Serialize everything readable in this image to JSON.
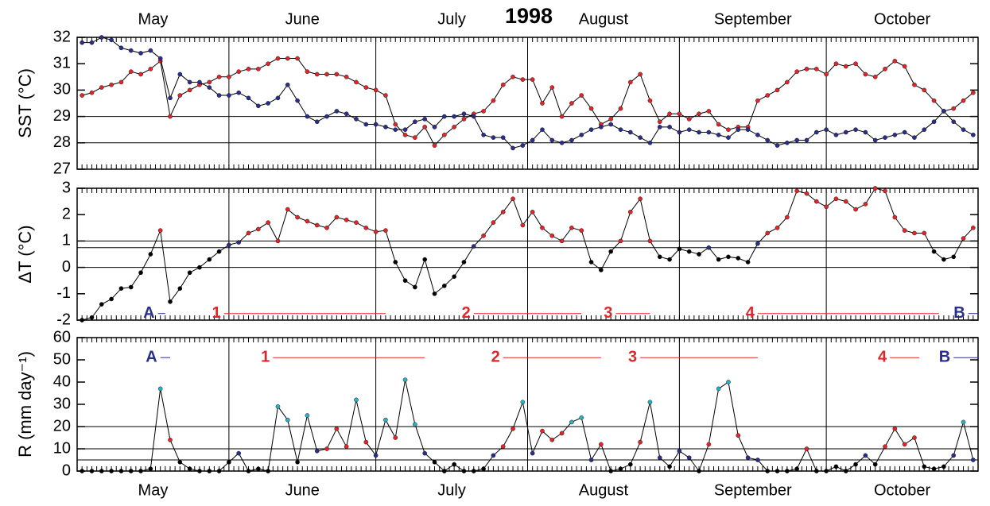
{
  "chart_data": [
    {
      "type": "line",
      "title": "1998",
      "months": [
        "May",
        "June",
        "July",
        "August",
        "September",
        "October"
      ],
      "month_starts": [
        0,
        31,
        61,
        92,
        123,
        153,
        184
      ],
      "xlim": [
        0,
        184
      ],
      "x": [
        1,
        3,
        5,
        7,
        9,
        11,
        13,
        15,
        17,
        19,
        21,
        23,
        25,
        27,
        29,
        31,
        33,
        35,
        37,
        39,
        41,
        43,
        45,
        47,
        49,
        51,
        53,
        55,
        57,
        59,
        61,
        63,
        65,
        67,
        69,
        71,
        73,
        75,
        77,
        79,
        81,
        83,
        85,
        87,
        89,
        91,
        93,
        95,
        97,
        99,
        101,
        103,
        105,
        107,
        109,
        111,
        113,
        115,
        117,
        119,
        121,
        123,
        125,
        127,
        129,
        131,
        133,
        135,
        137,
        139,
        141,
        143,
        145,
        147,
        149,
        151,
        153,
        155,
        157,
        159,
        161,
        163,
        165,
        167,
        169,
        171,
        173,
        175,
        177,
        179,
        181,
        183
      ],
      "ylabel": "SST (°C)",
      "ylim": [
        27,
        32
      ],
      "yticks": [
        27,
        28,
        29,
        30,
        31,
        32
      ],
      "hlines": [
        28,
        29
      ],
      "series": [
        {
          "color": "#e0262b",
          "values": [
            29.8,
            29.9,
            30.1,
            30.2,
            30.3,
            30.7,
            30.6,
            30.8,
            31.1,
            29.0,
            29.8,
            30.0,
            30.2,
            30.3,
            30.5,
            30.5,
            30.7,
            30.8,
            30.8,
            31.0,
            31.2,
            31.2,
            31.2,
            30.7,
            30.6,
            30.6,
            30.6,
            30.5,
            30.3,
            30.1,
            30.0,
            29.8,
            28.7,
            28.3,
            28.2,
            28.6,
            27.9,
            28.3,
            28.6,
            28.9,
            29.1,
            29.2,
            29.6,
            30.2,
            30.5,
            30.4,
            30.4,
            29.5,
            30.1,
            29.0,
            29.5,
            29.8,
            29.3,
            28.7,
            28.9,
            29.3,
            30.3,
            30.6,
            29.6,
            28.8,
            29.1,
            29.1,
            28.9,
            29.1,
            29.2,
            28.7,
            28.5,
            28.6,
            28.6,
            29.6,
            29.8,
            30.0,
            30.3,
            30.7,
            30.8,
            30.8,
            30.6,
            31.0,
            30.9,
            31.0,
            30.6,
            30.5,
            30.8,
            31.1,
            30.9,
            30.2,
            30.0,
            29.6,
            29.2,
            29.3,
            29.6,
            29.9
          ]
        },
        {
          "color": "#2b2f8c",
          "values": [
            31.8,
            31.8,
            32.0,
            31.9,
            31.6,
            31.5,
            31.4,
            31.5,
            31.2,
            29.7,
            30.6,
            30.3,
            30.3,
            30.1,
            29.8,
            29.8,
            29.9,
            29.7,
            29.4,
            29.5,
            29.7,
            30.2,
            29.6,
            29.0,
            28.8,
            29.0,
            29.2,
            29.1,
            28.9,
            28.7,
            28.7,
            28.6,
            28.5,
            28.5,
            28.8,
            28.9,
            28.6,
            29.0,
            29.0,
            29.1,
            29.0,
            28.3,
            28.2,
            28.2,
            27.8,
            27.9,
            28.1,
            28.5,
            28.1,
            28.0,
            28.1,
            28.3,
            28.5,
            28.6,
            28.7,
            28.5,
            28.4,
            28.2,
            28.0,
            28.6,
            28.6,
            28.4,
            28.5,
            28.4,
            28.4,
            28.3,
            28.2,
            28.5,
            28.5,
            28.3,
            28.1,
            27.9,
            28.0,
            28.1,
            28.1,
            28.4,
            28.5,
            28.3,
            28.4,
            28.5,
            28.4,
            28.1,
            28.2,
            28.3,
            28.4,
            28.2,
            28.5,
            28.8,
            29.2,
            28.8,
            28.5,
            28.3
          ]
        }
      ]
    },
    {
      "type": "line",
      "ylabel": "ΔT (°C)",
      "ylim": [
        -2,
        3
      ],
      "yticks": [
        -2,
        -1,
        0,
        1,
        2,
        3
      ],
      "hlines": [
        0,
        0.75,
        1
      ],
      "point_colors": {
        "default": "#000000",
        "levels": [
          {
            "min": 1,
            "color": "#e0262b"
          },
          {
            "min": 0.75,
            "color": "#2b2f8c"
          }
        ]
      },
      "series": [
        {
          "values": [
            -2.0,
            -1.9,
            -1.4,
            -1.2,
            -0.8,
            -0.75,
            -0.2,
            0.5,
            1.4,
            -1.3,
            -0.8,
            -0.2,
            0.0,
            0.3,
            0.6,
            0.85,
            0.95,
            1.3,
            1.45,
            1.7,
            1.0,
            2.2,
            1.9,
            1.75,
            1.6,
            1.5,
            1.9,
            1.8,
            1.7,
            1.5,
            1.35,
            1.4,
            0.2,
            -0.5,
            -0.75,
            0.3,
            -1.0,
            -0.7,
            -0.35,
            0.2,
            0.8,
            1.2,
            1.7,
            2.1,
            2.6,
            1.6,
            2.1,
            1.5,
            1.2,
            1.0,
            1.5,
            1.4,
            0.2,
            -0.1,
            0.6,
            1.0,
            2.1,
            2.6,
            1.0,
            0.4,
            0.3,
            0.7,
            0.6,
            0.5,
            0.75,
            0.3,
            0.4,
            0.35,
            0.2,
            0.9,
            1.3,
            1.5,
            1.9,
            2.9,
            2.8,
            2.5,
            2.3,
            2.6,
            2.5,
            2.2,
            2.4,
            3.0,
            2.9,
            1.9,
            1.4,
            1.3,
            1.3,
            0.6,
            0.3,
            0.4,
            1.1,
            1.5
          ]
        }
      ],
      "annotation_level": -1.75,
      "annotations": [
        {
          "label": "A",
          "color": "#2b2f8c",
          "start": 16.5,
          "end": 18
        },
        {
          "label": "1",
          "color": "#e0262b",
          "start": 30,
          "end": 63
        },
        {
          "label": "2",
          "color": "#e0262b",
          "start": 81,
          "end": 103
        },
        {
          "label": "3",
          "color": "#e0262b",
          "start": 110,
          "end": 117
        },
        {
          "label": "4",
          "color": "#e0262b",
          "start": 139,
          "end": 176
        },
        {
          "label": "B",
          "color": "#2b2f8c",
          "start": 182,
          "end": 184
        }
      ]
    },
    {
      "type": "line",
      "ylabel": "R (mm day⁻¹)",
      "ylim": [
        0,
        60
      ],
      "yticks": [
        0,
        10,
        20,
        30,
        40,
        50,
        60
      ],
      "hlines": [
        5,
        10,
        20
      ],
      "point_colors": {
        "default": "#000000",
        "levels": [
          {
            "min": 20,
            "color": "#2ab0c0"
          },
          {
            "min": 10,
            "color": "#e0262b"
          },
          {
            "min": 5,
            "color": "#2b2f8c"
          }
        ]
      },
      "series": [
        {
          "values": [
            0,
            0,
            0,
            0,
            0,
            0,
            0,
            1,
            37,
            14,
            4,
            1,
            0,
            0,
            0,
            4,
            8,
            0,
            1,
            0,
            29,
            23,
            4,
            25,
            9,
            10,
            19,
            11,
            32,
            13,
            7,
            23,
            15,
            41,
            21,
            8,
            4,
            0,
            3,
            0,
            0,
            1,
            7,
            11,
            19,
            31,
            8,
            18,
            14,
            17,
            22,
            24,
            5,
            12,
            0,
            1,
            3,
            13,
            31,
            6,
            2,
            9,
            6,
            0,
            12,
            37,
            40,
            16,
            6,
            5,
            0,
            0,
            0,
            1,
            10,
            0,
            0,
            2,
            0,
            3,
            7,
            3,
            11,
            19,
            12,
            15,
            2,
            1,
            2,
            7,
            22,
            5
          ]
        }
      ],
      "annotation_level": 51,
      "annotations": [
        {
          "label": "A",
          "color": "#2b2f8c",
          "start": 17,
          "end": 19
        },
        {
          "label": "1",
          "color": "#e0262b",
          "start": 40,
          "end": 71
        },
        {
          "label": "2",
          "color": "#e0262b",
          "start": 87,
          "end": 107
        },
        {
          "label": "3",
          "color": "#e0262b",
          "start": 115,
          "end": 139
        },
        {
          "label": "4",
          "color": "#e0262b",
          "start": 166,
          "end": 172
        },
        {
          "label": "B",
          "color": "#2b2f8c",
          "start": 179,
          "end": 184
        }
      ]
    }
  ]
}
